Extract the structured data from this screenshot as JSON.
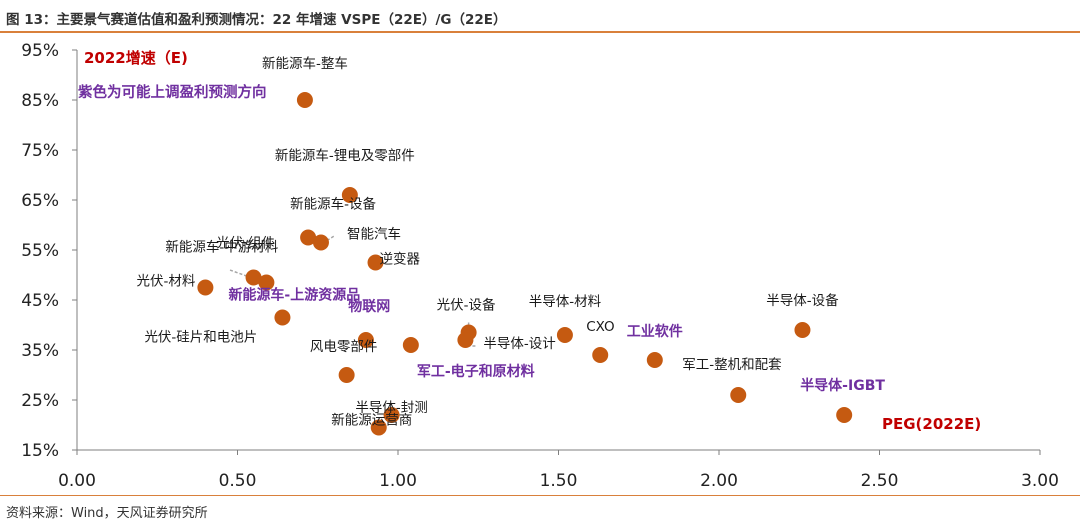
{
  "header": {
    "title": "图 13：主要景气赛道估值和盈利预测情况：22 年增速 VSPE（22E）/G（22E）"
  },
  "footer": {
    "source": "资料来源：Wind，天风证券研究所"
  },
  "chart_data": {
    "type": "scatter",
    "title": "",
    "xlabel": "PEG(2022E)",
    "ylabel": "2022增速（E)",
    "note": "紫色为可能上调盈利预测方向",
    "xlim": [
      0,
      3
    ],
    "ylim": [
      15,
      95
    ],
    "x_ticks": [
      "0.00",
      "0.50",
      "1.00",
      "1.50",
      "2.00",
      "2.50",
      "3.00"
    ],
    "y_ticks": [
      "95%",
      "85%",
      "75%",
      "65%",
      "55%",
      "45%",
      "35%",
      "25%",
      "15%"
    ],
    "grid": false,
    "colors": {
      "marker": "#c55a11",
      "purple": "#7030a0",
      "red": "#c00000",
      "label": "#1a1a1a"
    },
    "points": [
      {
        "label": "新能源车-整车",
        "x": 0.71,
        "y": 85,
        "purple": false
      },
      {
        "label": "新能源车-锂电及零部件",
        "x": 0.85,
        "y": 66,
        "purple": false
      },
      {
        "label": "新能源车-设备",
        "x": 0.72,
        "y": 57.5,
        "purple": false
      },
      {
        "label": "智能汽车",
        "x": 0.76,
        "y": 56.5,
        "purple": false
      },
      {
        "label": "光伏-组件",
        "x": 0.55,
        "y": 49.5,
        "purple": false
      },
      {
        "label": "新能源车-中游材料",
        "x": 0.59,
        "y": 48.5,
        "purple": false
      },
      {
        "label": "逆变器",
        "x": 0.93,
        "y": 52.5,
        "purple": false
      },
      {
        "label": "光伏-材料",
        "x": 0.4,
        "y": 47.5,
        "purple": false
      },
      {
        "label": "新能源车-上游资源品",
        "x": 0.64,
        "y": 41.5,
        "purple": true
      },
      {
        "label": "物联网",
        "x": 1.01,
        "y": 46,
        "purple": true
      },
      {
        "label": "光伏-硅片和电池片",
        "x": 0.64,
        "y": 41.5,
        "purple": false
      },
      {
        "label": "光伏-设备",
        "x": 1.22,
        "y": 38.5,
        "purple": false
      },
      {
        "label": "半导体-材料",
        "x": 1.52,
        "y": 38,
        "purple": false
      },
      {
        "label": "半导体-设计",
        "x": 1.21,
        "y": 37,
        "purple": false
      },
      {
        "label": "风电零部件",
        "x": 0.9,
        "y": 37,
        "purple": false
      },
      {
        "label": "军工-电子和原材料",
        "x": 1.04,
        "y": 36,
        "purple": true
      },
      {
        "label": "CXO",
        "x": 1.63,
        "y": 34,
        "purple": false
      },
      {
        "label": "工业软件",
        "x": 1.8,
        "y": 33,
        "purple": true
      },
      {
        "label": "半导体-设备",
        "x": 2.26,
        "y": 39,
        "purple": false
      },
      {
        "label": "军工-整机和配套",
        "x": 2.06,
        "y": 26,
        "purple": false
      },
      {
        "label": "半导体-IGBT",
        "x": 2.39,
        "y": 22,
        "purple": true
      },
      {
        "label": "半导体-封测",
        "x": 0.98,
        "y": 22,
        "purple": false
      },
      {
        "label": "新能源运营商",
        "x": 0.94,
        "y": 19.5,
        "purple": false
      },
      {
        "label": "",
        "x": 0.84,
        "y": 30,
        "purple": false
      }
    ]
  }
}
